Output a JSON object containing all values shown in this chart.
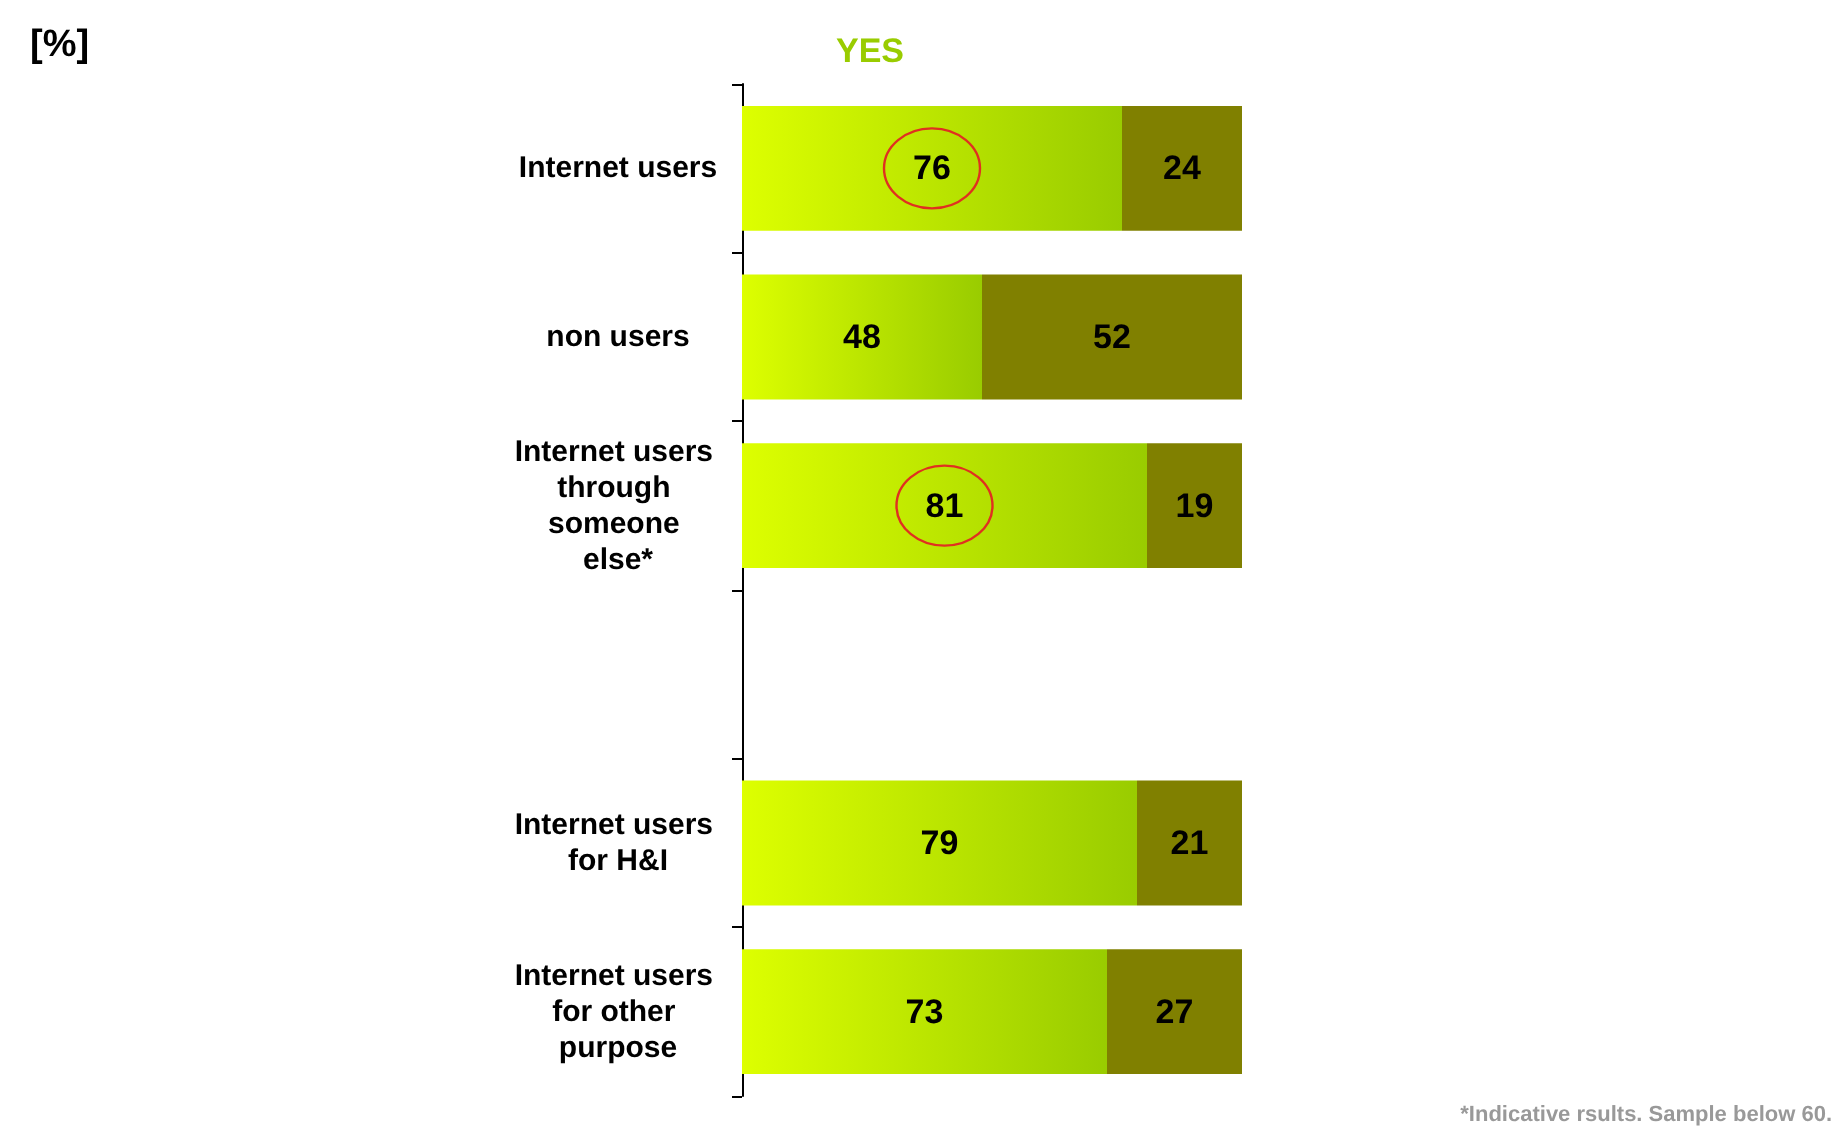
{
  "chart_data": {
    "type": "bar",
    "orientation": "horizontal",
    "stacked": true,
    "title": "[%]",
    "categories": [
      "Internet users",
      "non users",
      "Internet users through someone else*",
      null,
      "Internet users for H&I",
      "Internet users for other purpose"
    ],
    "series": [
      {
        "name": "YES",
        "color": "#99cc00",
        "values": [
          76,
          48,
          81,
          null,
          79,
          73
        ]
      },
      {
        "color": "#808000",
        "values": [
          24,
          52,
          19,
          null,
          21,
          27
        ]
      }
    ],
    "xlim": [
      0,
      100
    ],
    "tick_labels": "y",
    "data_labels": true,
    "legend": "top",
    "grid": false,
    "annotations": [
      "*Indicative rsults. Sample below 60."
    ]
  }
}
